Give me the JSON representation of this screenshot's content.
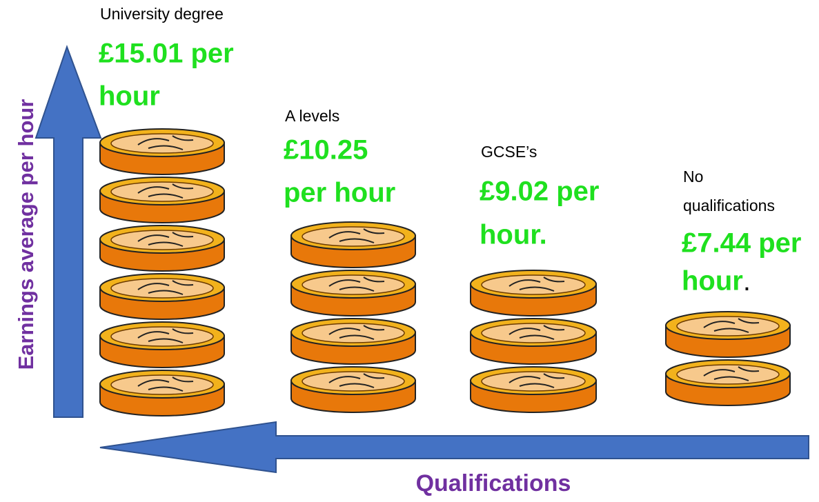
{
  "y_axis_label": "Earnings average per hour",
  "x_axis_label": "Qualifications",
  "items": [
    {
      "label_lines": [
        "University degree"
      ],
      "value_lines": [
        "£15.01 per",
        "hour"
      ]
    },
    {
      "label_lines": [
        "A levels"
      ],
      "value_lines": [
        "£10.25",
        "per hour"
      ]
    },
    {
      "label_lines": [
        "GCSE’s"
      ],
      "value_lines": [
        "£9.02 per",
        "hour."
      ]
    },
    {
      "label_lines": [
        "No",
        "qualifications"
      ],
      "value_lines": [
        "£7.44 per",
        "hour"
      ],
      "suffix": "."
    }
  ]
}
